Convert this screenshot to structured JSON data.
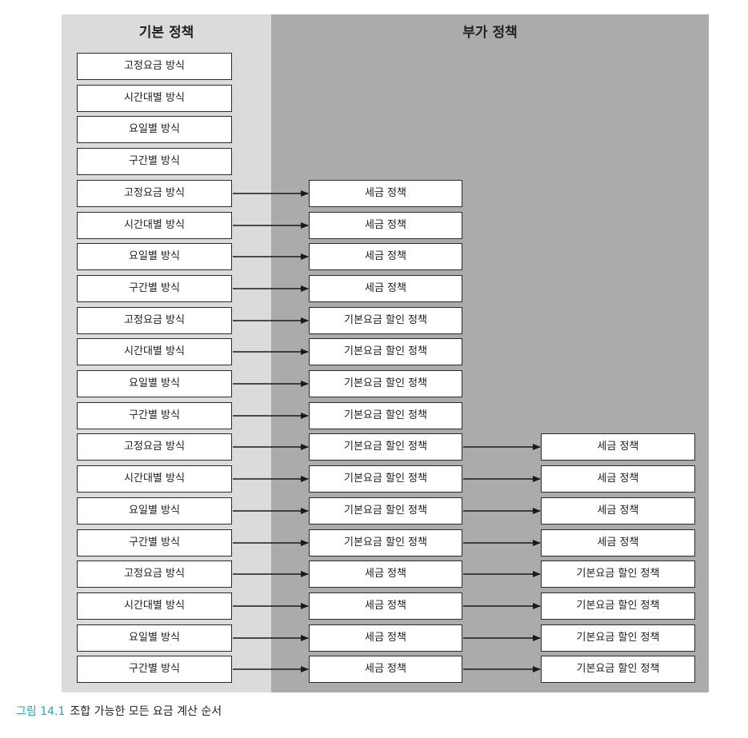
{
  "columns": {
    "basic_title": "기본 정책",
    "additional_title": "부가 정책"
  },
  "rows": [
    {
      "basic": "고정요금 방식",
      "add1": "",
      "add2": ""
    },
    {
      "basic": "시간대별 방식",
      "add1": "",
      "add2": ""
    },
    {
      "basic": "요일별 방식",
      "add1": "",
      "add2": ""
    },
    {
      "basic": "구간별 방식",
      "add1": "",
      "add2": ""
    },
    {
      "basic": "고정요금 방식",
      "add1": "세금 정책",
      "add2": ""
    },
    {
      "basic": "시간대별 방식",
      "add1": "세금 정책",
      "add2": ""
    },
    {
      "basic": "요일별 방식",
      "add1": "세금 정책",
      "add2": ""
    },
    {
      "basic": "구간별 방식",
      "add1": "세금 정책",
      "add2": ""
    },
    {
      "basic": "고정요금 방식",
      "add1": "기본요금 할인 정책",
      "add2": ""
    },
    {
      "basic": "시간대별 방식",
      "add1": "기본요금 할인 정책",
      "add2": ""
    },
    {
      "basic": "요일별 방식",
      "add1": "기본요금 할인 정책",
      "add2": ""
    },
    {
      "basic": "구간별 방식",
      "add1": "기본요금 할인 정책",
      "add2": ""
    },
    {
      "basic": "고정요금 방식",
      "add1": "기본요금 할인 정책",
      "add2": "세금 정책"
    },
    {
      "basic": "시간대별 방식",
      "add1": "기본요금 할인 정책",
      "add2": "세금 정책"
    },
    {
      "basic": "요일별 방식",
      "add1": "기본요금 할인 정책",
      "add2": "세금 정책"
    },
    {
      "basic": "구간별 방식",
      "add1": "기본요금 할인 정책",
      "add2": "세금 정책"
    },
    {
      "basic": "고정요금 방식",
      "add1": "세금 정책",
      "add2": "기본요금 할인 정책"
    },
    {
      "basic": "시간대별 방식",
      "add1": "세금 정책",
      "add2": "기본요금 할인 정책"
    },
    {
      "basic": "요일별 방식",
      "add1": "세금 정책",
      "add2": "기본요금 할인 정책"
    },
    {
      "basic": "구간별 방식",
      "add1": "세금 정책",
      "add2": "기본요금 할인 정책"
    }
  ],
  "caption": {
    "figure_number": "그림 14.1",
    "text": "조합 가능한 모든 요금 계산 순서"
  },
  "colors": {
    "left_panel": "#dbdbdb",
    "right_panel": "#ababab",
    "caption_accent": "#1fa9b4"
  }
}
